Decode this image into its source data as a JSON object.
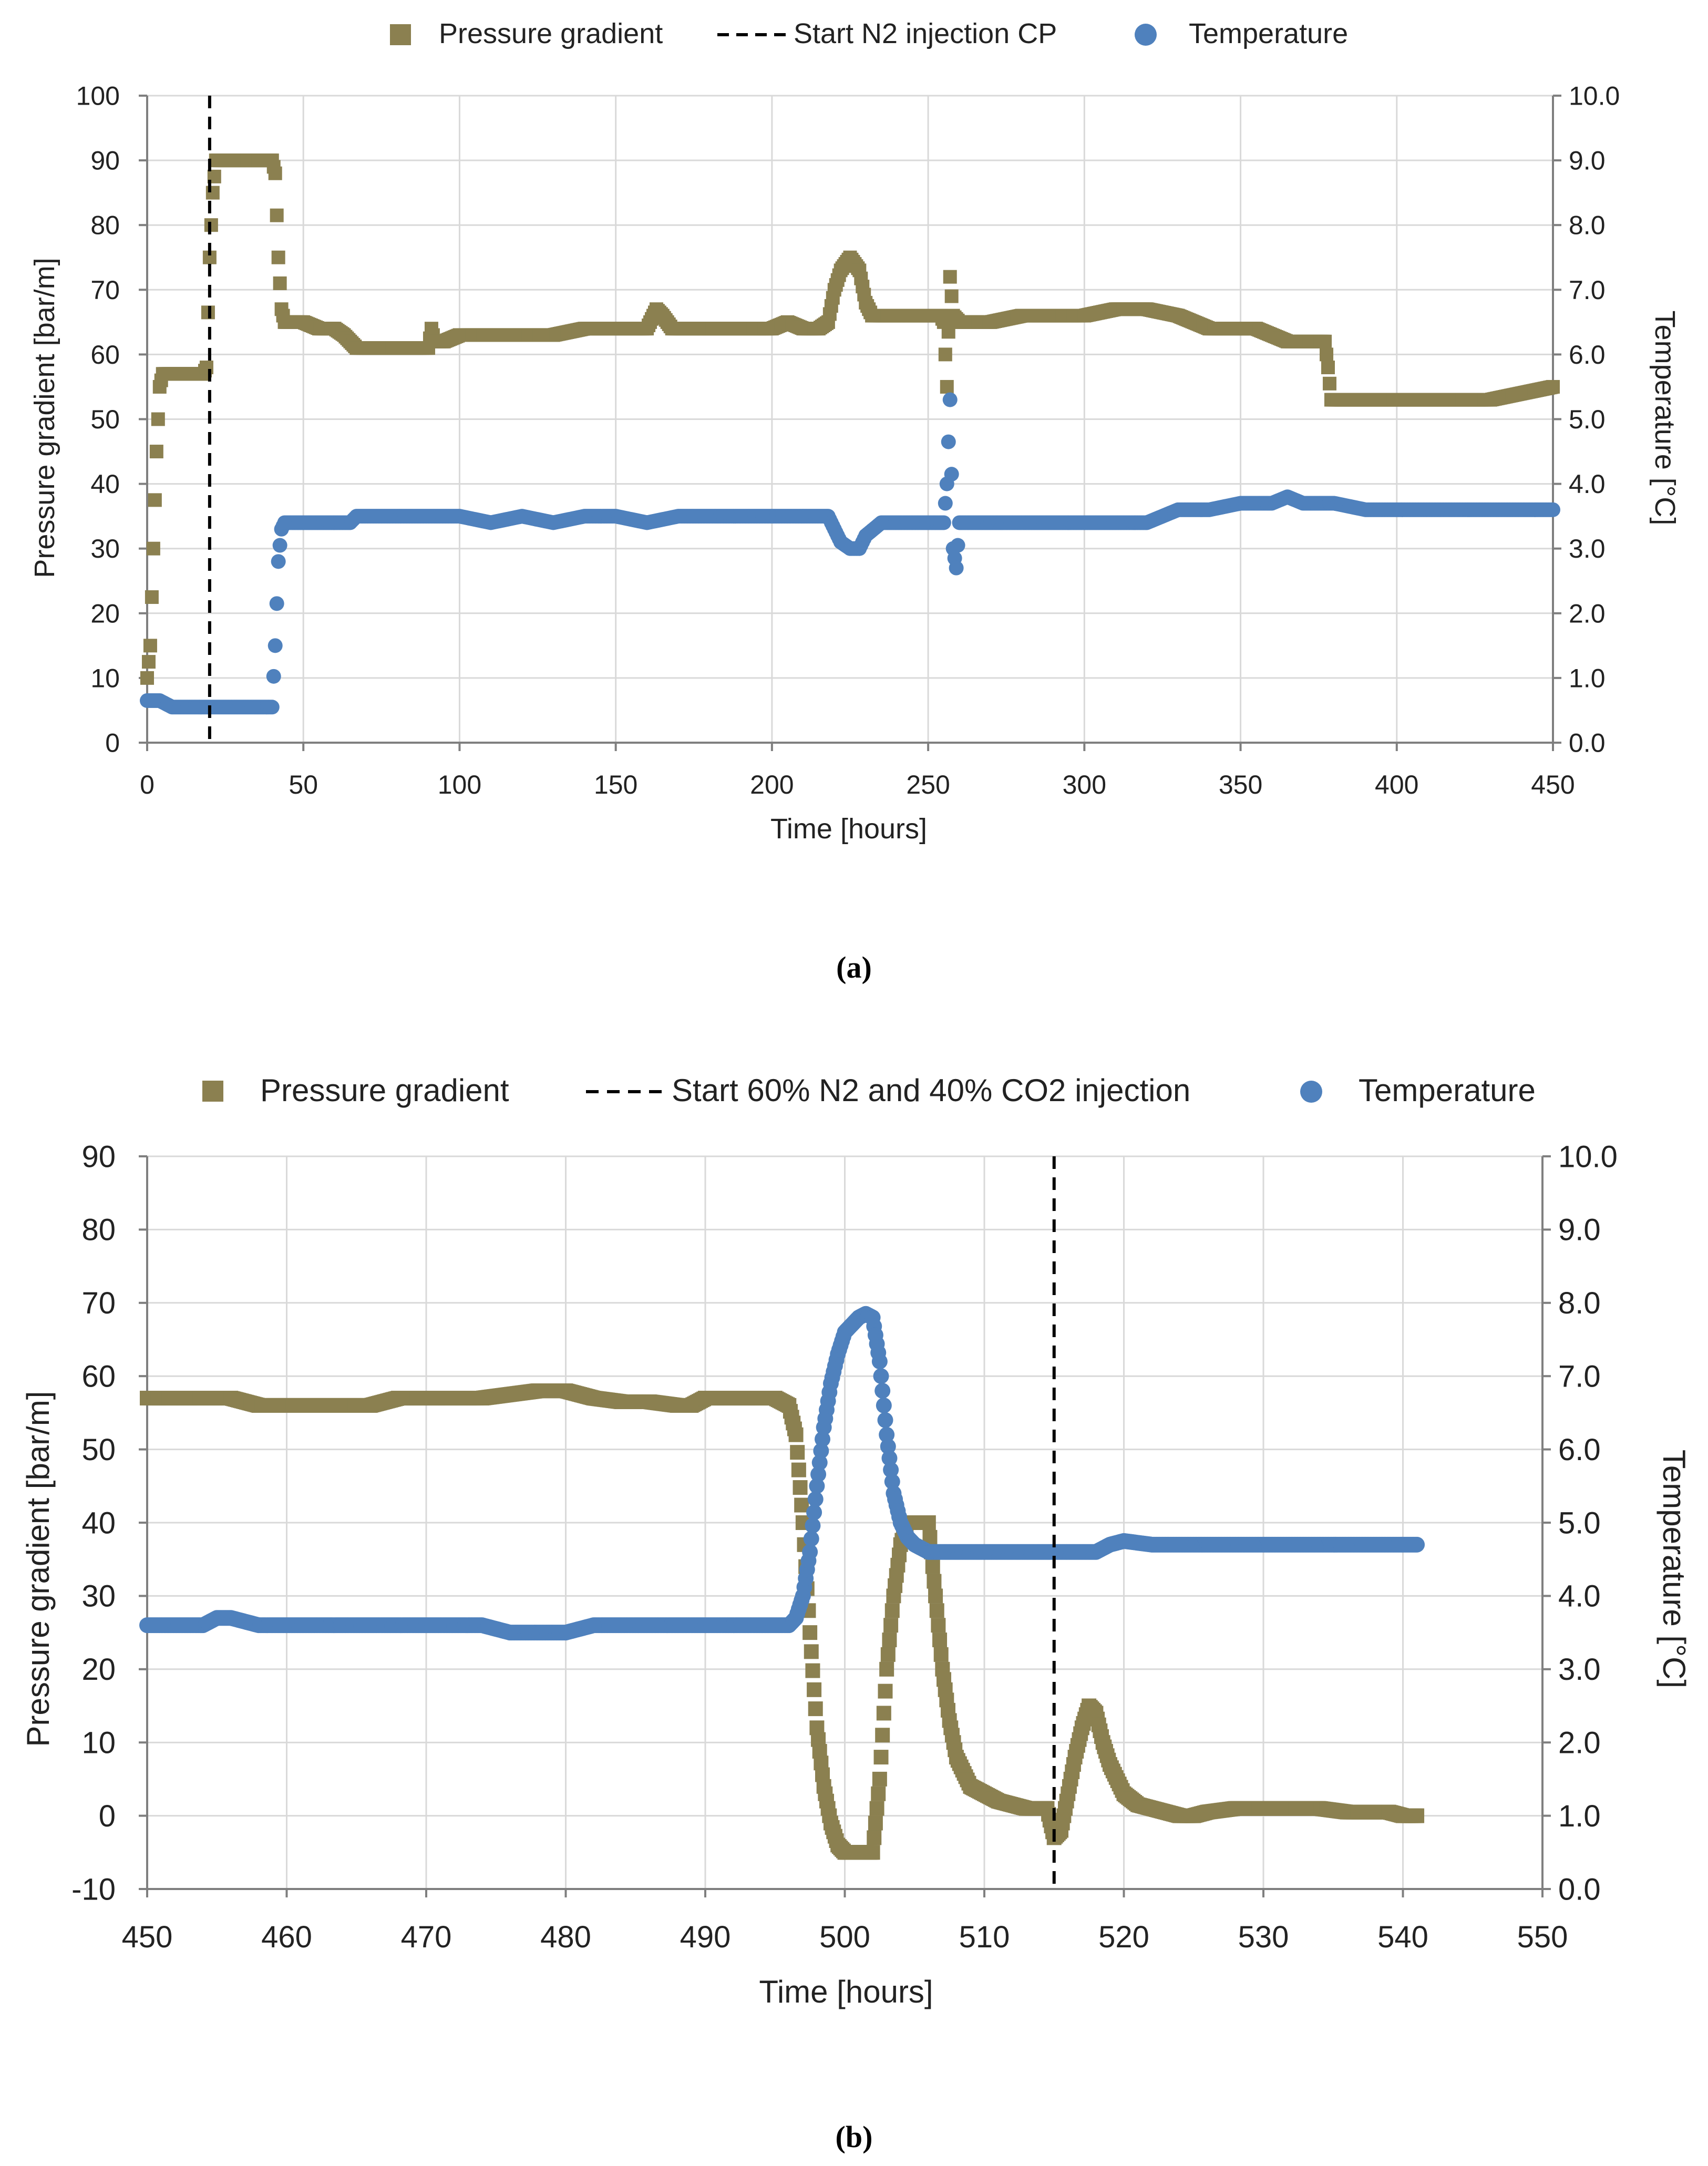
{
  "colors": {
    "pressure": "#8B8050",
    "temperature": "#4F81BD",
    "grid": "#d9d9d9",
    "axis": "#7f7f7f",
    "marker": "#000000"
  },
  "chart_data": [
    {
      "type": "scatter",
      "caption": "(a)",
      "legend": {
        "pressure": "Pressure gradient",
        "marker": "Start N2 injection CP",
        "temperature": "Temperature"
      },
      "xlabel": "Time [hours]",
      "ylabel": "Pressure gradient [bar/m]",
      "y2label": "Temperature [°C]",
      "xlim": [
        0,
        450
      ],
      "ylim": [
        0,
        100
      ],
      "y2lim": [
        0,
        10
      ],
      "xticks": [
        0,
        50,
        100,
        150,
        200,
        250,
        300,
        350,
        400,
        450
      ],
      "yticks": [
        0,
        10,
        20,
        30,
        40,
        50,
        60,
        70,
        80,
        90,
        100
      ],
      "y2ticks": [
        "0.0",
        "1.0",
        "2.0",
        "3.0",
        "4.0",
        "5.0",
        "6.0",
        "7.0",
        "8.0",
        "9.0",
        "10.0"
      ],
      "marker_x": 20,
      "series": [
        {
          "name": "Pressure gradient",
          "axis": "left",
          "x": [
            0,
            1,
            2,
            3,
            4,
            5,
            6,
            8,
            10,
            14,
            18,
            19,
            20,
            21,
            22,
            23,
            24,
            26,
            30,
            35,
            38,
            40,
            41,
            42,
            43,
            44,
            46,
            50,
            55,
            60,
            63,
            65,
            67,
            70,
            80,
            90,
            91,
            92,
            95,
            100,
            110,
            120,
            130,
            140,
            150,
            160,
            163,
            165,
            168,
            170,
            175,
            180,
            185,
            190,
            195,
            200,
            205,
            210,
            215,
            218,
            220,
            222,
            225,
            228,
            230,
            232,
            235,
            240,
            245,
            250,
            254,
            255,
            256,
            257,
            258,
            260,
            265,
            270,
            280,
            290,
            300,
            310,
            320,
            330,
            340,
            350,
            355,
            360,
            365,
            370,
            375,
            377,
            378,
            379,
            380,
            390,
            400,
            410,
            420,
            430,
            440,
            450
          ],
          "y": [
            10,
            15,
            30,
            45,
            55,
            57,
            57,
            57,
            57,
            57,
            57,
            58,
            75,
            85,
            90,
            90,
            90,
            90,
            90,
            90,
            90,
            90,
            88,
            75,
            67,
            65,
            65,
            65,
            64,
            64,
            63,
            62,
            61,
            61,
            61,
            61,
            64,
            62,
            62,
            63,
            63,
            63,
            63,
            64,
            64,
            64,
            67,
            66,
            64,
            64,
            64,
            64,
            64,
            64,
            64,
            64,
            65,
            64,
            64,
            65,
            70,
            73,
            75,
            73,
            68,
            66,
            66,
            66,
            66,
            66,
            66,
            65,
            55,
            72,
            66,
            65,
            65,
            65,
            66,
            66,
            66,
            67,
            67,
            66,
            64,
            64,
            64,
            63,
            62,
            62,
            62,
            62,
            58,
            53,
            53,
            53,
            53,
            53,
            53,
            53,
            54,
            55
          ]
        },
        {
          "name": "Temperature",
          "axis": "right",
          "x": [
            0,
            2,
            4,
            6,
            8,
            10,
            15,
            20,
            25,
            30,
            35,
            40,
            41,
            42,
            43,
            44,
            45,
            50,
            60,
            65,
            67,
            70,
            80,
            90,
            95,
            100,
            110,
            120,
            130,
            140,
            150,
            160,
            170,
            180,
            190,
            200,
            210,
            215,
            218,
            220,
            222,
            225,
            228,
            230,
            235,
            240,
            250,
            255,
            256,
            257,
            258,
            259,
            260,
            265,
            270,
            280,
            290,
            300,
            310,
            320,
            325,
            330,
            335,
            340,
            350,
            360,
            365,
            370,
            380,
            390,
            400,
            410,
            420,
            430,
            440,
            450
          ],
          "y": [
            0.65,
            0.65,
            0.65,
            0.6,
            0.55,
            0.55,
            0.55,
            0.55,
            0.55,
            0.55,
            0.55,
            0.55,
            1.5,
            2.8,
            3.3,
            3.4,
            3.4,
            3.4,
            3.4,
            3.4,
            3.5,
            3.5,
            3.5,
            3.5,
            3.5,
            3.5,
            3.4,
            3.5,
            3.4,
            3.5,
            3.5,
            3.4,
            3.5,
            3.5,
            3.5,
            3.5,
            3.5,
            3.5,
            3.5,
            3.3,
            3.1,
            3.0,
            3.0,
            3.2,
            3.4,
            3.4,
            3.4,
            3.4,
            4.0,
            5.3,
            3.0,
            2.7,
            3.4,
            3.4,
            3.4,
            3.4,
            3.4,
            3.4,
            3.4,
            3.4,
            3.5,
            3.6,
            3.6,
            3.6,
            3.7,
            3.7,
            3.8,
            3.7,
            3.7,
            3.6,
            3.6,
            3.6,
            3.6,
            3.6,
            3.6,
            3.6
          ]
        }
      ]
    },
    {
      "type": "scatter",
      "caption": "(b)",
      "legend": {
        "pressure": "Pressure gradient",
        "marker": "Start 60% N2 and 40% CO2 injection",
        "temperature": "Temperature"
      },
      "xlabel": "Time [hours]",
      "ylabel": "Pressure gradient [bar/m]",
      "y2label": "Temperature [°C]",
      "xlim": [
        450,
        550
      ],
      "ylim": [
        -10,
        90
      ],
      "y2lim": [
        0,
        10
      ],
      "xticks": [
        450,
        460,
        470,
        480,
        490,
        500,
        510,
        520,
        530,
        540,
        550
      ],
      "yticks": [
        -10,
        0,
        10,
        20,
        30,
        40,
        50,
        60,
        70,
        80,
        90
      ],
      "y2ticks": [
        "0.0",
        "1.0",
        "2.0",
        "3.0",
        "4.0",
        "5.0",
        "6.0",
        "7.0",
        "8.0",
        "9.0",
        "10.0"
      ],
      "marker_x": 515,
      "series": [
        {
          "name": "Pressure gradient",
          "axis": "left",
          "x": [
            450,
            452,
            454,
            455,
            456,
            458,
            460,
            462,
            464,
            466,
            468,
            470,
            472,
            474,
            476,
            478,
            480,
            482,
            484,
            486,
            488,
            489,
            490,
            492,
            494,
            495,
            496,
            496.5,
            497,
            497.5,
            498,
            498.5,
            499,
            499.5,
            500,
            501,
            502,
            502.5,
            503,
            503.5,
            504,
            504.5,
            505,
            505.5,
            506,
            506.5,
            507,
            507.5,
            508,
            509,
            510,
            511,
            512,
            513,
            514,
            514.5,
            515,
            515.5,
            516,
            516.5,
            517,
            517.5,
            518,
            518.5,
            519,
            520,
            521,
            522,
            523,
            524,
            525,
            526,
            528,
            530,
            532,
            534,
            536,
            537,
            538,
            539,
            540,
            541
          ],
          "y": [
            57,
            57,
            57,
            57,
            57,
            56,
            56,
            56,
            56,
            56,
            57,
            57,
            57,
            57,
            57.5,
            58,
            58,
            57,
            56.5,
            56.5,
            56,
            56,
            57,
            57,
            57,
            57,
            56,
            52,
            40,
            25,
            12,
            4,
            -1,
            -4,
            -5,
            -5,
            -5,
            5,
            20,
            30,
            37,
            40,
            40,
            40,
            40,
            30,
            20,
            13,
            8,
            4,
            3,
            2,
            1.5,
            1,
            1,
            1,
            -3,
            -2,
            3,
            8,
            12,
            15,
            14,
            10,
            7,
            3,
            1.5,
            1,
            0.5,
            0,
            0,
            0.5,
            1,
            1,
            1,
            1,
            0.5,
            0.5,
            0.5,
            0.5,
            0,
            0
          ]
        },
        {
          "name": "Temperature",
          "axis": "right",
          "x": [
            450,
            452,
            454,
            455,
            456,
            458,
            460,
            462,
            464,
            466,
            468,
            470,
            472,
            474,
            476,
            478,
            480,
            482,
            484,
            486,
            488,
            490,
            492,
            494,
            495,
            496,
            496.5,
            497,
            497.5,
            498,
            498.5,
            499,
            499.5,
            500,
            500.5,
            501,
            501.5,
            502,
            502.5,
            503,
            503.5,
            504,
            504.5,
            505,
            506,
            507,
            508,
            510,
            512,
            514,
            515,
            516,
            518,
            519,
            520,
            522,
            524,
            526,
            528,
            530,
            532,
            534,
            536,
            538,
            540,
            541
          ],
          "y": [
            3.6,
            3.6,
            3.6,
            3.7,
            3.7,
            3.6,
            3.6,
            3.6,
            3.6,
            3.6,
            3.6,
            3.6,
            3.6,
            3.6,
            3.5,
            3.5,
            3.5,
            3.6,
            3.6,
            3.6,
            3.6,
            3.6,
            3.6,
            3.6,
            3.6,
            3.6,
            3.7,
            4.0,
            4.6,
            5.5,
            6.3,
            6.9,
            7.3,
            7.6,
            7.7,
            7.8,
            7.85,
            7.8,
            7.2,
            6.2,
            5.4,
            5.0,
            4.8,
            4.7,
            4.6,
            4.6,
            4.6,
            4.6,
            4.6,
            4.6,
            4.6,
            4.6,
            4.6,
            4.7,
            4.75,
            4.7,
            4.7,
            4.7,
            4.7,
            4.7,
            4.7,
            4.7,
            4.7,
            4.7,
            4.7,
            4.7
          ]
        }
      ]
    }
  ]
}
